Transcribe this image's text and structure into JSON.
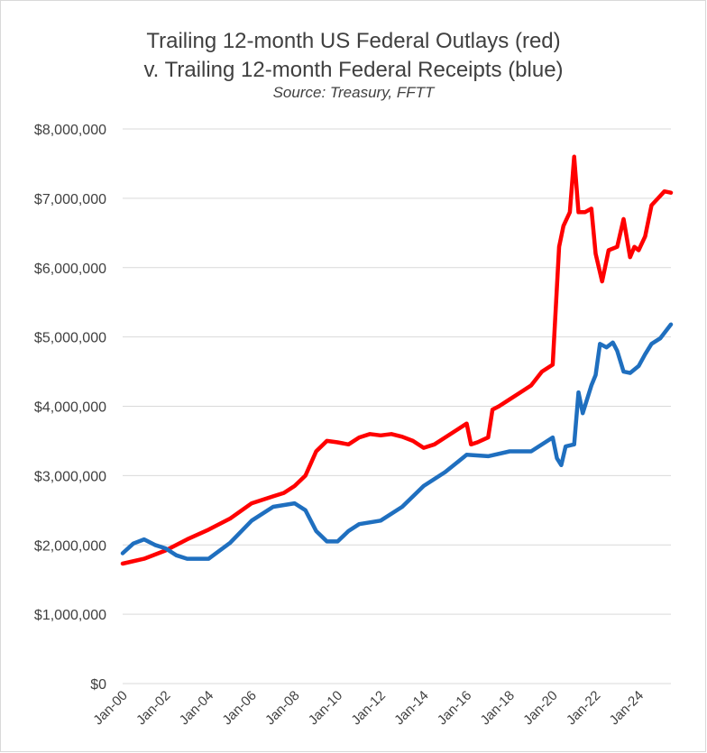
{
  "chart_data": {
    "type": "line",
    "title_line1": "Trailing 12-month US Federal Outlays (red)",
    "title_line2": "v. Trailing 12-month Federal Receipts (blue)",
    "subtitle": "Source: Treasury, FFTT",
    "ylim": [
      0,
      8000000
    ],
    "xlim": [
      2000.0,
      2025.5
    ],
    "grid": true,
    "y_ticks": [
      "$0",
      "$1,000,000",
      "$2,000,000",
      "$3,000,000",
      "$4,000,000",
      "$5,000,000",
      "$6,000,000",
      "$7,000,000",
      "$8,000,000"
    ],
    "x_ticks": [
      "Jan-00",
      "Jan-02",
      "Jan-04",
      "Jan-06",
      "Jan-08",
      "Jan-10",
      "Jan-12",
      "Jan-14",
      "Jan-16",
      "Jan-18",
      "Jan-20",
      "Jan-22",
      "Jan-24"
    ],
    "colors": {
      "outlays": "#ff0000",
      "receipts": "#1f6fbf",
      "grid": "#d9d9d9"
    },
    "series": [
      {
        "key": "outlays",
        "x": [
          2000.0,
          2001.0,
          2002.0,
          2003.0,
          2004.0,
          2005.0,
          2006.0,
          2007.0,
          2007.5,
          2008.0,
          2008.5,
          2009.0,
          2009.5,
          2010.0,
          2010.5,
          2011.0,
          2011.5,
          2012.0,
          2012.5,
          2013.0,
          2013.5,
          2014.0,
          2014.5,
          2015.0,
          2015.5,
          2016.0,
          2016.2,
          2016.5,
          2017.0,
          2017.2,
          2017.5,
          2018.0,
          2018.5,
          2019.0,
          2019.5,
          2020.0,
          2020.3,
          2020.5,
          2020.8,
          2021.0,
          2021.2,
          2021.5,
          2021.8,
          2022.0,
          2022.3,
          2022.6,
          2023.0,
          2023.3,
          2023.6,
          2023.8,
          2024.0,
          2024.3,
          2024.6,
          2024.9,
          2025.2,
          2025.5
        ],
        "values": [
          1730000,
          1800000,
          1920000,
          2080000,
          2220000,
          2380000,
          2600000,
          2700000,
          2750000,
          2850000,
          3000000,
          3350000,
          3500000,
          3480000,
          3450000,
          3550000,
          3600000,
          3580000,
          3600000,
          3560000,
          3500000,
          3400000,
          3450000,
          3550000,
          3650000,
          3750000,
          3450000,
          3480000,
          3550000,
          3950000,
          4000000,
          4100000,
          4200000,
          4300000,
          4500000,
          4600000,
          6300000,
          6600000,
          6800000,
          7600000,
          6800000,
          6800000,
          6850000,
          6200000,
          5800000,
          6250000,
          6300000,
          6700000,
          6150000,
          6300000,
          6250000,
          6450000,
          6900000,
          7000000,
          7100000,
          7080000
        ]
      },
      {
        "key": "receipts",
        "x": [
          2000.0,
          2000.5,
          2001.0,
          2001.5,
          2002.0,
          2002.5,
          2003.0,
          2004.0,
          2005.0,
          2006.0,
          2007.0,
          2008.0,
          2008.5,
          2009.0,
          2009.5,
          2010.0,
          2010.5,
          2011.0,
          2012.0,
          2013.0,
          2014.0,
          2015.0,
          2016.0,
          2017.0,
          2018.0,
          2019.0,
          2020.0,
          2020.2,
          2020.4,
          2020.6,
          2021.0,
          2021.2,
          2021.4,
          2021.8,
          2022.0,
          2022.2,
          2022.5,
          2022.8,
          2023.0,
          2023.3,
          2023.6,
          2024.0,
          2024.3,
          2024.6,
          2025.0,
          2025.5
        ],
        "values": [
          1880000,
          2020000,
          2080000,
          2000000,
          1950000,
          1850000,
          1800000,
          1800000,
          2030000,
          2350000,
          2550000,
          2600000,
          2500000,
          2200000,
          2050000,
          2050000,
          2200000,
          2300000,
          2350000,
          2550000,
          2850000,
          3050000,
          3300000,
          3280000,
          3350000,
          3350000,
          3550000,
          3250000,
          3150000,
          3420000,
          3450000,
          4200000,
          3900000,
          4300000,
          4450000,
          4900000,
          4850000,
          4920000,
          4800000,
          4500000,
          4480000,
          4580000,
          4750000,
          4900000,
          4980000,
          5180000
        ]
      }
    ]
  }
}
